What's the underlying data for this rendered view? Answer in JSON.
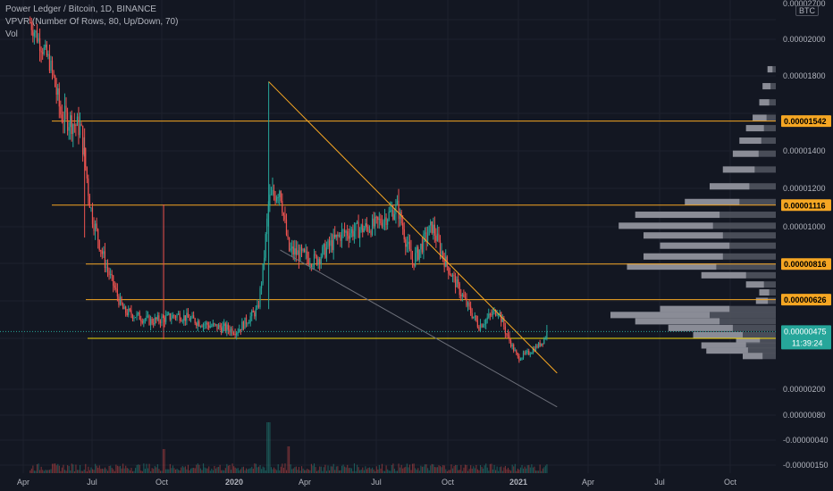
{
  "legend": {
    "title": "Power Ledger / Bitcoin, 1D, BINANCE",
    "vpvr": "VPVR (Number Of Rows, 80, Up/Down, 70)",
    "vol": "Vol"
  },
  "unit_badge": "BTC",
  "colors": {
    "background": "#131722",
    "up": "#26a69a",
    "down": "#ef5350",
    "level": "#f5a623",
    "support": "#f5d90a",
    "trend_upper": "#f5a623",
    "trend_lower": "#6b6e78",
    "vpvr_light": "#9598a1",
    "vpvr_dark": "#50535e",
    "last_price": "#26a69a",
    "badge_yellow": "#ffeb3b"
  },
  "chart_data": {
    "type": "candlestick",
    "instrument": "Power Ledger / Bitcoin",
    "interval": "1D",
    "exchange": "BINANCE",
    "y_scale": "log",
    "ylim": [
      -1.5e-06,
      2.7e-06
    ],
    "y_ticks": [
      "0.00002700",
      "0.00002000",
      "0.00001800",
      "0.00001400",
      "0.00001200",
      "0.00001000",
      "0.00000200",
      "0.00000080",
      "-0.00000040",
      "-0.00000150"
    ],
    "x_ticks": [
      "Apr",
      "Jul",
      "Oct",
      "2020",
      "Apr",
      "Jul",
      "Oct",
      "2021",
      "Apr",
      "Jul",
      "Oct"
    ],
    "price_path": [
      {
        "date": "2019-04-10",
        "price": 2.35e-05
      },
      {
        "date": "2019-05-05",
        "price": 1.95e-05
      },
      {
        "date": "2019-05-20",
        "price": 1.58e-05
      },
      {
        "date": "2019-06-15",
        "price": 1.5e-05
      },
      {
        "date": "2019-06-30",
        "price": 1.05e-05
      },
      {
        "date": "2019-07-20",
        "price": 7.8e-06
      },
      {
        "date": "2019-08-10",
        "price": 5.7e-06
      },
      {
        "date": "2019-09-15",
        "price": 5.2e-06
      },
      {
        "date": "2019-10-20",
        "price": 5.5e-06
      },
      {
        "date": "2019-12-01",
        "price": 5e-06
      },
      {
        "date": "2020-01-05",
        "price": 4.8e-06
      },
      {
        "date": "2020-02-01",
        "price": 5.8e-06
      },
      {
        "date": "2020-02-15",
        "price": 1.13e-05
      },
      {
        "date": "2020-03-01",
        "price": 1.2e-05
      },
      {
        "date": "2020-03-12",
        "price": 8.8e-06
      },
      {
        "date": "2020-04-15",
        "price": 8.3e-06
      },
      {
        "date": "2020-05-20",
        "price": 9.6e-06
      },
      {
        "date": "2020-07-01",
        "price": 1e-05
      },
      {
        "date": "2020-08-01",
        "price": 1.1e-05
      },
      {
        "date": "2020-08-20",
        "price": 8.2e-06
      },
      {
        "date": "2020-09-15",
        "price": 1e-05
      },
      {
        "date": "2020-10-05",
        "price": 8e-06
      },
      {
        "date": "2020-10-25",
        "price": 6.4e-06
      },
      {
        "date": "2020-11-15",
        "price": 5e-06
      },
      {
        "date": "2020-12-10",
        "price": 5.8e-06
      },
      {
        "date": "2020-12-25",
        "price": 4.3e-06
      },
      {
        "date": "2021-01-05",
        "price": 3.3e-06
      },
      {
        "date": "2021-01-20",
        "price": 3.6e-06
      },
      {
        "date": "2021-02-05",
        "price": 4.2e-06
      },
      {
        "date": "2021-02-12",
        "price": 4.75e-06
      }
    ],
    "volume_spikes": [
      {
        "date": "2020-02-15",
        "level": 0.95
      },
      {
        "date": "2019-10-01",
        "level": 0.45
      },
      {
        "date": "2020-03-12",
        "level": 0.5
      }
    ],
    "horizontal_levels": [
      {
        "value": "0.00001542"
      },
      {
        "value": "0.00001116"
      },
      {
        "value": "0.00000816"
      },
      {
        "value": "0.00000626"
      },
      {
        "value": "0.00000447"
      }
    ],
    "support_line": 4.47e-06,
    "trendlines": [
      {
        "name": "upper",
        "from": {
          "date": "2020-02-15",
          "price": 1.78e-05
        },
        "to": {
          "date": "2021-02-25",
          "price": 2.6e-06
        }
      },
      {
        "name": "lower",
        "from": {
          "date": "2020-03-01",
          "price": 8.8e-06
        },
        "to": {
          "date": "2021-02-25",
          "price": 1.5e-06
        }
      }
    ],
    "price_labels": {
      "last_price": "0.00000475",
      "countdown": "11:39:24",
      "marked_price": "0.00000447"
    },
    "vpvr_levels": [
      {
        "price": 1.88e-05,
        "volume": 0.05
      },
      {
        "price": 1.75e-05,
        "volume": 0.08
      },
      {
        "price": 1.65e-05,
        "volume": 0.1
      },
      {
        "price": 1.56e-05,
        "volume": 0.14
      },
      {
        "price": 1.5e-05,
        "volume": 0.18
      },
      {
        "price": 1.43e-05,
        "volume": 0.22
      },
      {
        "price": 1.36e-05,
        "volume": 0.26
      },
      {
        "price": 1.28e-05,
        "volume": 0.32
      },
      {
        "price": 1.2e-05,
        "volume": 0.4
      },
      {
        "price": 1.13e-05,
        "volume": 0.55
      },
      {
        "price": 1.06e-05,
        "volume": 0.85
      },
      {
        "price": 1e-05,
        "volume": 0.95
      },
      {
        "price": 9.5e-06,
        "volume": 0.8
      },
      {
        "price": 9e-06,
        "volume": 0.7
      },
      {
        "price": 8.5e-06,
        "volume": 0.8
      },
      {
        "price": 8e-06,
        "volume": 0.9
      },
      {
        "price": 7.5e-06,
        "volume": 0.45
      },
      {
        "price": 7e-06,
        "volume": 0.18
      },
      {
        "price": 6.6e-06,
        "volume": 0.1
      },
      {
        "price": 6.2e-06,
        "volume": 0.12
      },
      {
        "price": 5.8e-06,
        "volume": 0.7
      },
      {
        "price": 5.5e-06,
        "volume": 1.0
      },
      {
        "price": 5.2e-06,
        "volume": 0.85
      },
      {
        "price": 4.9e-06,
        "volume": 0.65
      },
      {
        "price": 4.6e-06,
        "volume": 0.5
      },
      {
        "price": 4.3e-06,
        "volume": 0.24
      },
      {
        "price": 4e-06,
        "volume": 0.45
      },
      {
        "price": 3.7e-06,
        "volume": 0.42
      },
      {
        "price": 3.4e-06,
        "volume": 0.2
      }
    ]
  }
}
